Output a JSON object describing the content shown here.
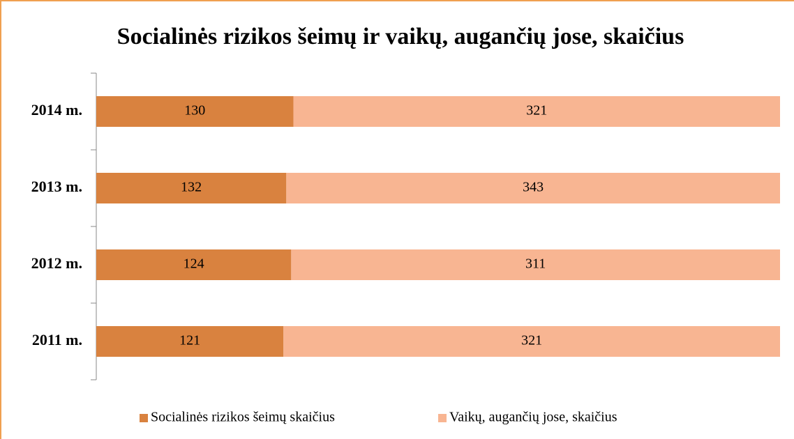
{
  "chart_data": {
    "type": "stacked_bar_100",
    "orientation": "horizontal",
    "title": "Socialinės rizikos šeimų ir vaikų, augančių jose, skaičius",
    "categories": [
      "2014 m.",
      "2013 m.",
      "2012 m.",
      "2011 m."
    ],
    "series": [
      {
        "name": "Socialinės rizikos šeimų skaičius",
        "color": "#d9823f",
        "values": [
          130,
          132,
          124,
          121
        ]
      },
      {
        "name": "Vaikų, augančių jose, skaičius",
        "color": "#f8b592",
        "values": [
          321,
          343,
          311,
          321
        ]
      }
    ],
    "legend": "bottom"
  }
}
